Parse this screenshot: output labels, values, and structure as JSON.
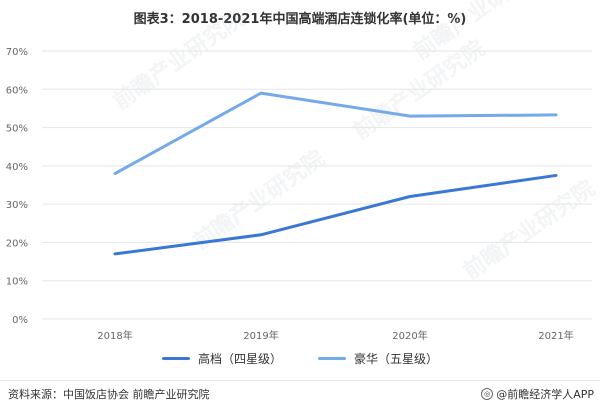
{
  "title": "图表3：2018-2021年中国高端酒店连锁化率(单位：%)",
  "source": "资料来源：中国饭店协会 前瞻产业研究院",
  "brand": "@前瞻经济学人APP",
  "watermark": "前瞻产业研究院",
  "colors": {
    "series_0": "#3a78d4",
    "series_1": "#74a9ea",
    "grid": "#e6e6e6",
    "axis_text": "#666666"
  },
  "chart_data": {
    "type": "line",
    "title": "图表3：2018-2021年中国高端酒店连锁化率(单位：%)",
    "categories": [
      "2018年",
      "2019年",
      "2020年",
      "2021年"
    ],
    "y_ticks": [
      "0%",
      "10%",
      "20%",
      "30%",
      "40%",
      "50%",
      "60%",
      "70%"
    ],
    "ylim": [
      0,
      70
    ],
    "grid": true,
    "legend_position": "bottom",
    "series": [
      {
        "name": "高档（四星级）",
        "values": [
          17,
          22,
          32,
          37.5
        ]
      },
      {
        "name": "豪华（五星级）",
        "values": [
          38,
          59,
          53,
          53.3
        ]
      }
    ]
  }
}
